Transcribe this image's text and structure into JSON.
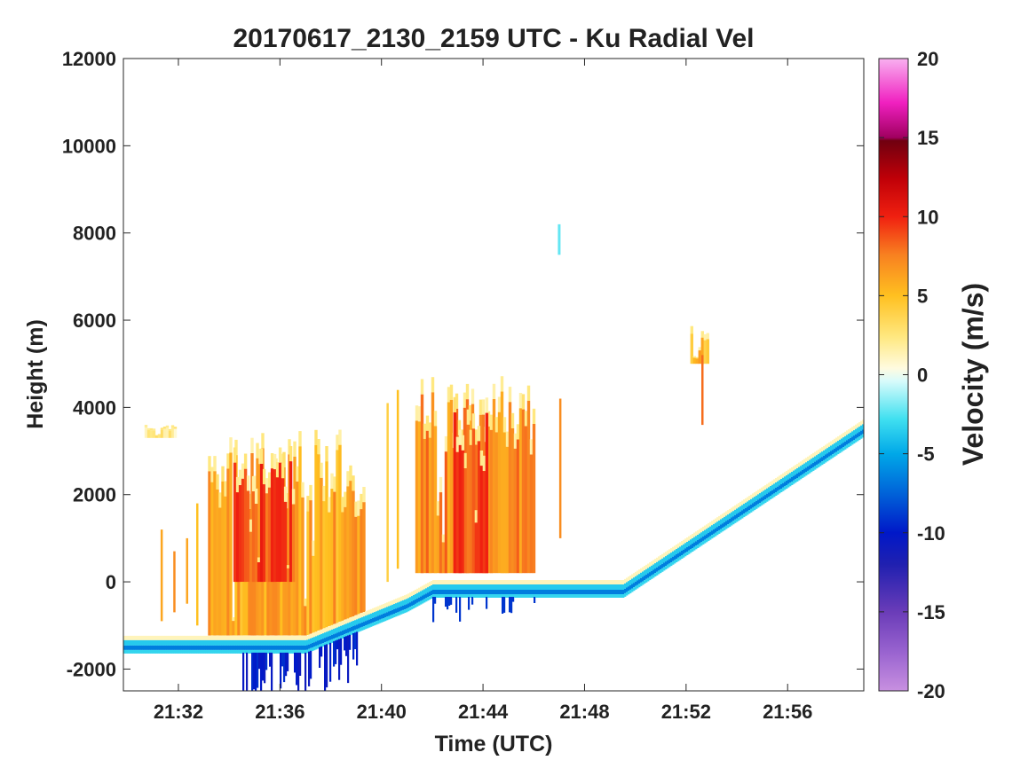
{
  "chart_data": {
    "type": "heatmap",
    "title": "20170617_2130_2159 UTC - Ku Radial Vel",
    "xlabel": "Time (UTC)",
    "ylabel": "Height (m)",
    "x_unit": "minutes",
    "xlim": [
      "21:29:50",
      "21:59:00"
    ],
    "ylim": [
      -2500,
      12000
    ],
    "x_ticks": [
      "21:32",
      "21:36",
      "21:40",
      "21:44",
      "21:48",
      "21:52",
      "21:56"
    ],
    "x_tick_minutes": [
      32,
      36,
      40,
      44,
      48,
      52,
      56
    ],
    "y_ticks": [
      -2000,
      0,
      2000,
      4000,
      6000,
      8000,
      10000,
      12000
    ],
    "y_tick_labels": [
      "-2000",
      "0",
      "2000",
      "4000",
      "6000",
      "8000",
      "10000",
      "12000"
    ],
    "colorbar": {
      "label": "Velocity (m/s)",
      "range": [
        -20,
        20
      ],
      "ticks": [
        -20,
        -15,
        -10,
        -5,
        0,
        5,
        10,
        15,
        20
      ],
      "tick_labels": [
        "-20",
        "-15",
        "-10",
        "-5",
        "0",
        "5",
        "10",
        "15",
        "20"
      ]
    },
    "ground_return": [
      {
        "time": "21:29:50",
        "height": -1380
      },
      {
        "time": "21:37:00",
        "height": -1380
      },
      {
        "time": "21:41:00",
        "height": -420
      },
      {
        "time": "21:42:00",
        "height": -100
      },
      {
        "time": "21:49:30",
        "height": -100
      },
      {
        "time": "21:59:00",
        "height": 3600
      }
    ],
    "echo_cells": [
      {
        "start": "21:30:40",
        "end": "21:31:50",
        "base": 3300,
        "top": 3600,
        "velocity": 2
      },
      {
        "start": "21:33:10",
        "end": "21:39:20",
        "base": -1300,
        "top": 3500,
        "velocity": 6
      },
      {
        "start": "21:34:10",
        "end": "21:36:30",
        "base": 0,
        "top": 3200,
        "velocity": 9
      },
      {
        "start": "21:41:20",
        "end": "21:46:00",
        "base": 200,
        "top": 4800,
        "velocity": 7
      },
      {
        "start": "21:42:50",
        "end": "21:44:10",
        "base": 200,
        "top": 4300,
        "velocity": 9
      },
      {
        "start": "21:52:10",
        "end": "21:52:50",
        "base": 5000,
        "top": 5900,
        "velocity": 5
      }
    ],
    "grid": false
  }
}
